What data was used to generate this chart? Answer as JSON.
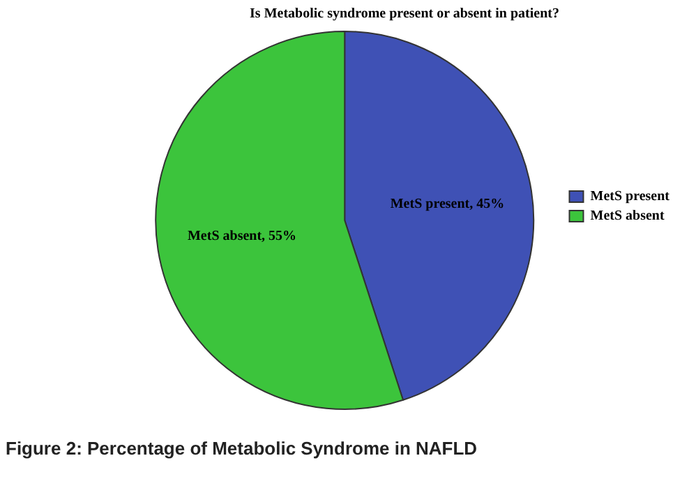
{
  "chart_data": {
    "type": "pie",
    "title": "Is Metabolic syndrome present or absent in patient?",
    "categories": [
      "MetS present",
      "MetS absent"
    ],
    "values": [
      45,
      55
    ],
    "colors": [
      "#3f51b5",
      "#3cc43c"
    ],
    "value_labels": [
      "MetS present, 45%",
      "MetS absent, 55%"
    ],
    "legend": "right",
    "annotations": [
      "Figure 2: Percentage of Metabolic Syndrome in NAFLD"
    ]
  }
}
